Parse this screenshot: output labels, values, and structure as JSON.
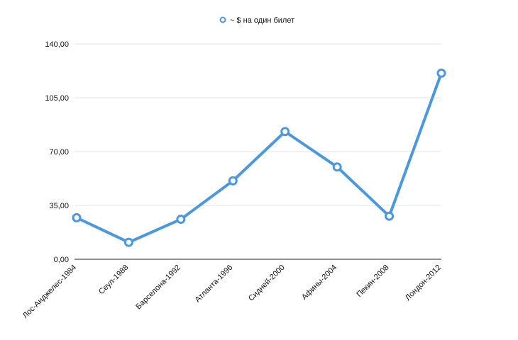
{
  "chart_data": {
    "type": "line",
    "categories": [
      "Лос-Анджелес-1984",
      "Сеул-1988",
      "Барселона-1992",
      "Атланта-1996",
      "Сидней-2000",
      "Афины-2004",
      "Пекин-2008",
      "Лондон-2012"
    ],
    "series": [
      {
        "name": "~ $ на один билет",
        "values": [
          27,
          11,
          26,
          51,
          83,
          60,
          28,
          121
        ],
        "color": "#4a98e0"
      }
    ],
    "y_ticks": [
      "0,00",
      "35,00",
      "70,00",
      "105,00",
      "140,00"
    ],
    "ylim": [
      0,
      140
    ],
    "grid": true,
    "legend_position": "top-center",
    "title": "",
    "xlabel": "",
    "ylabel": ""
  }
}
